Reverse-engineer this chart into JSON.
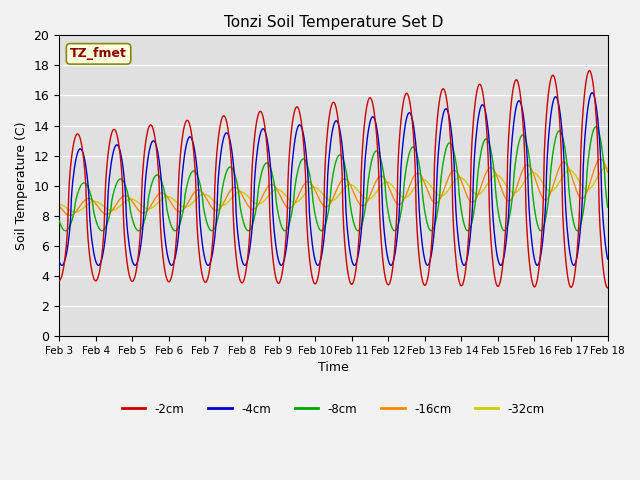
{
  "title": "Tonzi Soil Temperature Set D",
  "xlabel": "Time",
  "ylabel": "Soil Temperature (C)",
  "ylim": [
    0,
    20
  ],
  "annotation": "TZ_fmet",
  "plot_bg": "#e0e0e0",
  "fig_bg": "#f2f2f2",
  "colors": {
    "-2cm": "#cc0000",
    "-4cm": "#0000cc",
    "-8cm": "#00aa00",
    "-16cm": "#ff8800",
    "-32cm": "#cccc00"
  },
  "legend_labels": [
    "-2cm",
    "-4cm",
    "-8cm",
    "-16cm",
    "-32cm"
  ],
  "x_tick_labels": [
    "Feb 3",
    "Feb 4",
    "Feb 5",
    "Feb 6",
    "Feb 7",
    "Feb 8",
    "Feb 9",
    "Feb 10",
    "Feb 11",
    "Feb 12",
    "Feb 13",
    "Feb 14",
    "Feb 15",
    "Feb 16",
    "Feb 17",
    "Feb 18"
  ],
  "n_days": 15,
  "samples_per_day": 48
}
